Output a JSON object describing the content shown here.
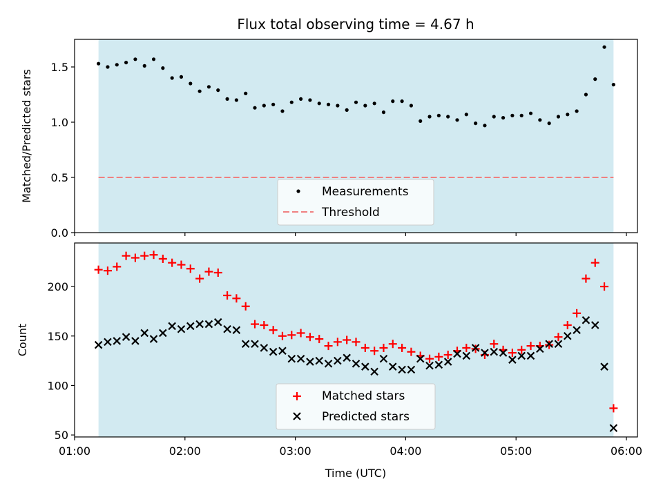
{
  "chart_data": [
    {
      "type": "scatter",
      "title": "Flux total observing time = 4.67 h",
      "xlabel": "",
      "ylabel": "Matched/Predicted stars",
      "ylim": [
        0,
        1.75
      ],
      "yticks": [
        0.0,
        0.5,
        1.0,
        1.5
      ],
      "ytick_labels": [
        "0.0",
        "0.5",
        "1.0",
        "1.5"
      ],
      "shaded_span": [
        "01:13",
        "05:53"
      ],
      "shade_color": "#add8e6",
      "legend": {
        "placement": "lower center",
        "entries": [
          "Measurements",
          "Threshold"
        ]
      },
      "threshold": {
        "name": "Threshold",
        "value": 0.5,
        "color": "#f08080",
        "style": "dashed"
      },
      "series": [
        {
          "name": "Measurements",
          "color": "#000000",
          "marker": "dot",
          "x": [
            "01:13",
            "01:18",
            "01:23",
            "01:28",
            "01:33",
            "01:38",
            "01:43",
            "01:48",
            "01:53",
            "01:58",
            "02:03",
            "02:08",
            "02:13",
            "02:18",
            "02:23",
            "02:28",
            "02:33",
            "02:38",
            "02:43",
            "02:48",
            "02:53",
            "02:58",
            "03:03",
            "03:08",
            "03:13",
            "03:18",
            "03:23",
            "03:28",
            "03:33",
            "03:38",
            "03:43",
            "03:48",
            "03:53",
            "03:58",
            "04:03",
            "04:08",
            "04:13",
            "04:18",
            "04:23",
            "04:28",
            "04:33",
            "04:38",
            "04:43",
            "04:48",
            "04:53",
            "04:58",
            "05:03",
            "05:08",
            "05:13",
            "05:18",
            "05:23",
            "05:28",
            "05:33",
            "05:38",
            "05:43",
            "05:48",
            "05:53"
          ],
          "y": [
            1.53,
            1.5,
            1.52,
            1.54,
            1.57,
            1.51,
            1.57,
            1.49,
            1.4,
            1.41,
            1.35,
            1.28,
            1.32,
            1.29,
            1.21,
            1.2,
            1.26,
            1.13,
            1.15,
            1.16,
            1.1,
            1.18,
            1.21,
            1.2,
            1.17,
            1.16,
            1.15,
            1.11,
            1.18,
            1.15,
            1.17,
            1.09,
            1.19,
            1.19,
            1.15,
            1.01,
            1.05,
            1.06,
            1.05,
            1.02,
            1.07,
            0.99,
            0.97,
            1.05,
            1.04,
            1.06,
            1.06,
            1.08,
            1.02,
            0.99,
            1.05,
            1.07,
            1.1,
            1.25,
            1.39,
            1.68,
            1.34
          ]
        }
      ]
    },
    {
      "type": "scatter",
      "title": "",
      "xlabel": "Time (UTC)",
      "ylabel": "Count",
      "ylim": [
        48,
        244
      ],
      "yticks": [
        50,
        100,
        150,
        200
      ],
      "ytick_labels": [
        "50",
        "100",
        "150",
        "200"
      ],
      "xlim": [
        "01:00",
        "06:06"
      ],
      "xtick_labels": [
        "01:00",
        "02:00",
        "03:00",
        "04:00",
        "05:00",
        "06:00"
      ],
      "shaded_span": [
        "01:13",
        "05:53"
      ],
      "shade_color": "#add8e6",
      "legend": {
        "placement": "lower center",
        "entries": [
          "Matched stars",
          "Predicted stars"
        ]
      },
      "series": [
        {
          "name": "Matched stars",
          "color": "#ff0000",
          "marker": "plus",
          "x": [
            "01:13",
            "01:18",
            "01:23",
            "01:28",
            "01:33",
            "01:38",
            "01:43",
            "01:48",
            "01:53",
            "01:58",
            "02:03",
            "02:08",
            "02:13",
            "02:18",
            "02:23",
            "02:28",
            "02:33",
            "02:38",
            "02:43",
            "02:48",
            "02:53",
            "02:58",
            "03:03",
            "03:08",
            "03:13",
            "03:18",
            "03:23",
            "03:28",
            "03:33",
            "03:38",
            "03:43",
            "03:48",
            "03:53",
            "03:58",
            "04:03",
            "04:08",
            "04:13",
            "04:18",
            "04:23",
            "04:28",
            "04:33",
            "04:38",
            "04:43",
            "04:48",
            "04:53",
            "04:58",
            "05:03",
            "05:08",
            "05:13",
            "05:18",
            "05:23",
            "05:28",
            "05:33",
            "05:38",
            "05:43",
            "05:48",
            "05:53"
          ],
          "y": [
            217,
            216,
            220,
            231,
            229,
            231,
            232,
            228,
            224,
            222,
            218,
            208,
            215,
            214,
            191,
            188,
            180,
            162,
            161,
            156,
            150,
            151,
            153,
            149,
            147,
            140,
            144,
            146,
            144,
            138,
            135,
            138,
            142,
            138,
            134,
            130,
            127,
            129,
            131,
            135,
            138,
            137,
            131,
            142,
            136,
            133,
            136,
            140,
            140,
            141,
            149,
            161,
            173,
            208,
            224,
            200,
            77
          ]
        },
        {
          "name": "Predicted stars",
          "color": "#000000",
          "marker": "x",
          "x": [
            "01:13",
            "01:18",
            "01:23",
            "01:28",
            "01:33",
            "01:38",
            "01:43",
            "01:48",
            "01:53",
            "01:58",
            "02:03",
            "02:08",
            "02:13",
            "02:18",
            "02:23",
            "02:28",
            "02:33",
            "02:38",
            "02:43",
            "02:48",
            "02:53",
            "02:58",
            "03:03",
            "03:08",
            "03:13",
            "03:18",
            "03:23",
            "03:28",
            "03:33",
            "03:38",
            "03:43",
            "03:48",
            "03:53",
            "03:58",
            "04:03",
            "04:08",
            "04:13",
            "04:18",
            "04:23",
            "04:28",
            "04:33",
            "04:38",
            "04:43",
            "04:48",
            "04:53",
            "04:58",
            "05:03",
            "05:08",
            "05:13",
            "05:18",
            "05:23",
            "05:28",
            "05:33",
            "05:38",
            "05:43",
            "05:48",
            "05:53"
          ],
          "y": [
            141,
            144,
            145,
            149,
            145,
            153,
            147,
            153,
            160,
            157,
            160,
            162,
            162,
            164,
            157,
            156,
            142,
            142,
            138,
            134,
            135,
            127,
            127,
            124,
            125,
            122,
            125,
            128,
            122,
            119,
            114,
            127,
            119,
            116,
            116,
            127,
            120,
            121,
            124,
            132,
            130,
            138,
            133,
            134,
            133,
            126,
            130,
            130,
            137,
            142,
            142,
            150,
            156,
            166,
            161,
            119,
            57
          ]
        }
      ]
    }
  ]
}
